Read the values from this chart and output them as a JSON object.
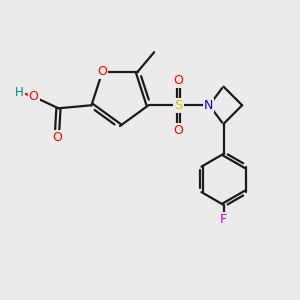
{
  "bg_color": "#ebebeb",
  "bond_color": "#1a1a1a",
  "oxygen_color": "#ff0000",
  "nitrogen_color": "#0000cd",
  "sulfur_color": "#cccc00",
  "fluorine_color": "#cc00cc",
  "hydrogen_color": "#008080",
  "line_width": 1.6,
  "fig_size": [
    3.0,
    3.0
  ],
  "dpi": 100,
  "xlim": [
    0,
    10
  ],
  "ylim": [
    0,
    10
  ]
}
